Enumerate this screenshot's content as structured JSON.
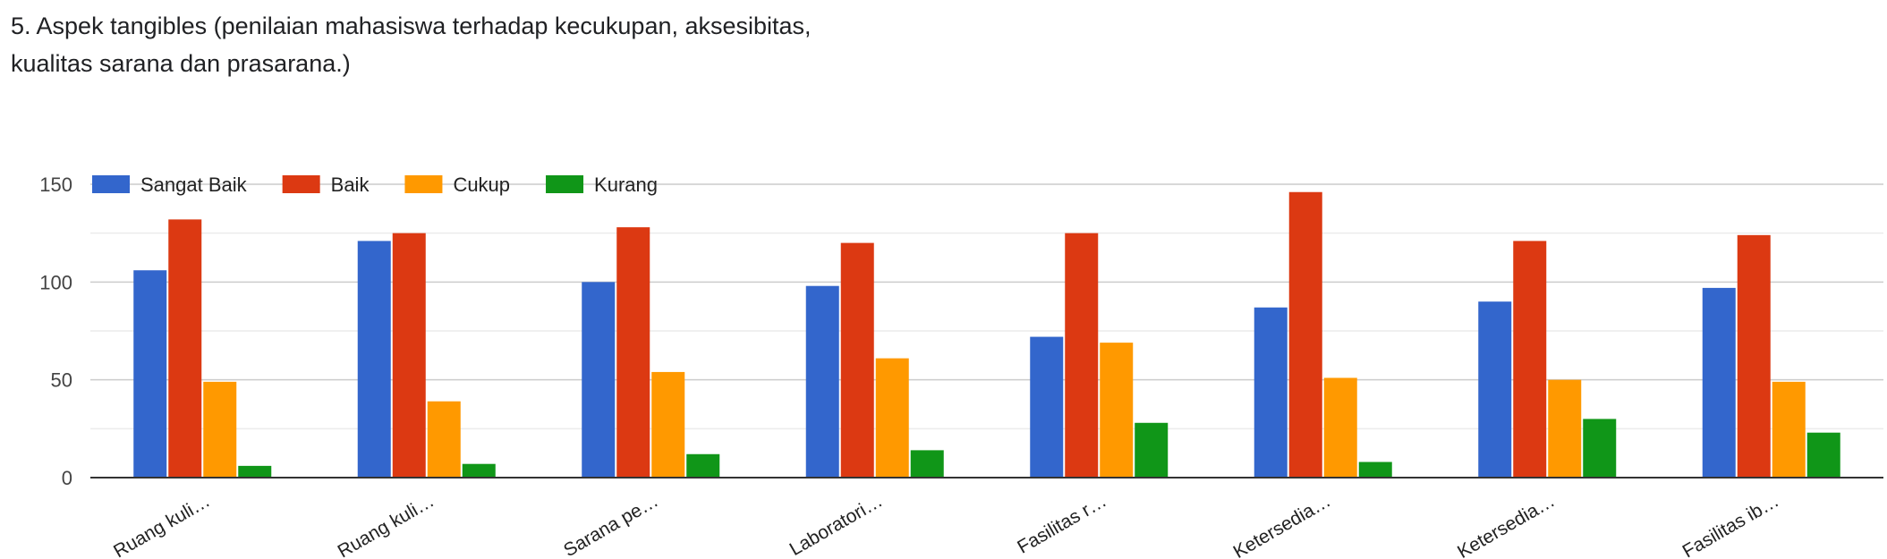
{
  "chart_data": {
    "type": "bar",
    "title": "5. Aspek tangibles (penilaian mahasiswa terhadap kecukupan, aksesibitas, kualitas sarana dan prasarana.)",
    "categories": [
      "Ruang kuli…",
      "Ruang kuli…",
      "Sarana pe…",
      "Laboratori…",
      "Fasilitas r…",
      "Ketersedia…",
      "Ketersedia…",
      "Fasilitas ib…"
    ],
    "series": [
      {
        "name": "Sangat Baik",
        "color": "#3366cc",
        "values": [
          106,
          121,
          100,
          98,
          72,
          87,
          90,
          97
        ]
      },
      {
        "name": "Baik",
        "color": "#dc3912",
        "values": [
          132,
          125,
          128,
          120,
          125,
          146,
          121,
          124
        ]
      },
      {
        "name": "Cukup",
        "color": "#ff9900",
        "values": [
          49,
          39,
          54,
          61,
          69,
          51,
          50,
          49
        ]
      },
      {
        "name": "Kurang",
        "color": "#109618",
        "values": [
          6,
          7,
          12,
          14,
          28,
          8,
          30,
          23
        ]
      }
    ],
    "yticks": [
      0,
      50,
      100,
      150
    ],
    "ylim": [
      0,
      150
    ],
    "grid": true,
    "legend": "top-left"
  }
}
